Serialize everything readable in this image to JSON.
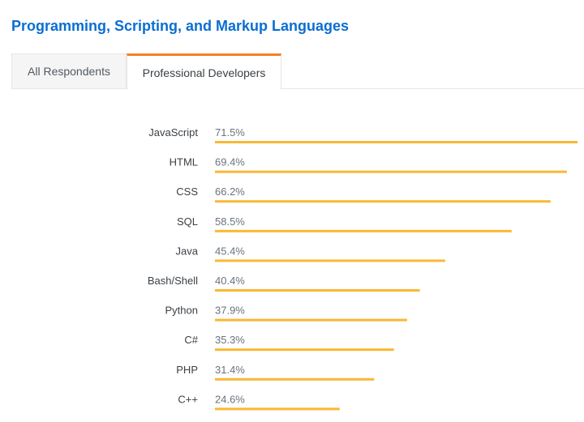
{
  "header": {
    "title": "Programming, Scripting, and Markup Languages"
  },
  "tabs": [
    {
      "label": "All Respondents",
      "active": false
    },
    {
      "label": "Professional Developers",
      "active": true
    }
  ],
  "colors": {
    "title": "#0a6ed1",
    "bar": "#f9b834",
    "active_tab_accent": "#f48024"
  },
  "chart_data": {
    "type": "bar",
    "orientation": "horizontal",
    "categories": [
      "JavaScript",
      "HTML",
      "CSS",
      "SQL",
      "Java",
      "Bash/Shell",
      "Python",
      "C#",
      "PHP",
      "C++"
    ],
    "values": [
      71.5,
      69.4,
      66.2,
      58.5,
      45.4,
      40.4,
      37.9,
      35.3,
      31.4,
      24.6
    ],
    "value_labels": [
      "71.5%",
      "69.4%",
      "66.2%",
      "58.5%",
      "45.4%",
      "40.4%",
      "37.9%",
      "35.3%",
      "31.4%",
      "24.6%"
    ],
    "unit": "%",
    "title": "",
    "xlabel": "",
    "ylabel": "",
    "grid": false,
    "legend": "none"
  }
}
